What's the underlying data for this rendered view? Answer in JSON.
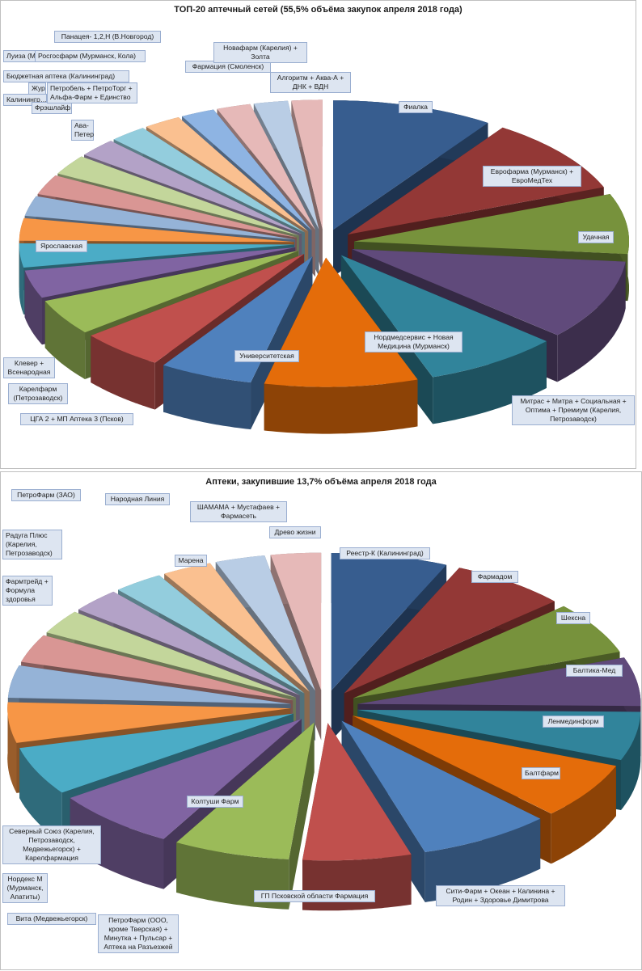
{
  "charts": [
    {
      "title": "ТОП-20 аптечный сетей (55,5% объёма закупок апреля 2018 года)",
      "chart_data": {
        "type": "pie",
        "variant": "3d-exploded",
        "categories": [
          "Фиалка",
          "Еврофарма (Мурманск) + ЕвроМедТех",
          "Удачная",
          "Митрас + Митра + Социальная + Оптима + Премиум (Карелия, Петрозаводск)",
          "Нордмедсервис + Новая Медицина (Мурманск)",
          "Университетская",
          "ЦГА 2 + МП Аптека 3 (Псков)",
          "Карелфарм (Петрозаводск)",
          "Клевер + Всенародная",
          "Ярославская",
          "Калинингр…",
          "Журавли",
          "Фрэшлайф",
          "Ава-Петер",
          "Петробель + ПетроТорг + Альфа-Фарм + Единство",
          "Бюджетная аптека (Калининград)",
          "Луиза (Мурманск)",
          "Росгосфарм (Мурманск, Кола)",
          "Панацея- 1,2,Н (В.Новгород)",
          "Фармация (Смоленск)",
          "Новафарм (Карелия) + Золта",
          "Алгоритм + Аква-А + ДНК + ВДН"
        ],
        "values": [
          9.5,
          9.5,
          7.5,
          10.0,
          8.0,
          9.0,
          5.5,
          5.0,
          4.5,
          3.5,
          3.0,
          2.8,
          2.5,
          2.5,
          2.5,
          2.3,
          2.2,
          2.2,
          2.0,
          2.0,
          2.0,
          1.8
        ],
        "colors": [
          "#375d8f",
          "#933836",
          "#77923c",
          "#604a7b",
          "#31849b",
          "#e46c0a",
          "#4f81bd",
          "#c0504d",
          "#9bbb59",
          "#8064a2",
          "#4bacc6",
          "#f79646",
          "#95b3d7",
          "#d99694",
          "#c3d69b",
          "#b3a2c7",
          "#93cddd",
          "#fac090",
          "#8eb4e3",
          "#e6b9b8",
          "#b9cde5",
          "#e6b9b8"
        ]
      }
    },
    {
      "title": "Аптеки, закупившие 13,7% объёма апреля 2018 года",
      "chart_data": {
        "type": "pie",
        "variant": "3d-exploded",
        "categories": [
          "Реестр-К (Калининград)",
          "Фармадом",
          "Шексна",
          "Балтика-Мед",
          "Ленмединформ",
          "Балтфарм",
          "Сити-Фарм + Океан + Калинина + Родин + Здоровье Димитрова",
          "ГП Псковской области Фармация",
          "Колтуши Фарм",
          "ПетроФарм (ООО, кроме Тверская) + Минутка + Пульсар + Аптека на Разъезжей",
          "Вита (Медвежьегорск)",
          "Нордекс М (Мурманск, Апатиты)",
          "Северный Союз (Карелия, Петрозаводск, Медвежьегорск) + Карелфармация",
          "Фармтрейд + Формула здоровья",
          "Радуга Плюс (Карелия, Петрозаводск)",
          "ПетроФарм (ЗАО)",
          "Народная Линия",
          "Марена",
          "ШАМАМА + Мустафаев + Фармасеть",
          "Древо жизни"
        ],
        "values": [
          7.0,
          7.0,
          6.5,
          6.0,
          6.0,
          7.0,
          8.0,
          6.5,
          7.0,
          7.5,
          6.0,
          5.0,
          4.0,
          3.5,
          3.0,
          3.0,
          3.0,
          3.0,
          3.0,
          3.0
        ],
        "colors": [
          "#375d8f",
          "#933836",
          "#77923c",
          "#604a7b",
          "#31849b",
          "#e46c0a",
          "#4f81bd",
          "#c0504d",
          "#9bbb59",
          "#8064a2",
          "#4bacc6",
          "#f79646",
          "#95b3d7",
          "#d99694",
          "#c3d69b",
          "#b3a2c7",
          "#93cddd",
          "#fac090",
          "#b9cde5",
          "#e6b9b8"
        ]
      }
    }
  ]
}
